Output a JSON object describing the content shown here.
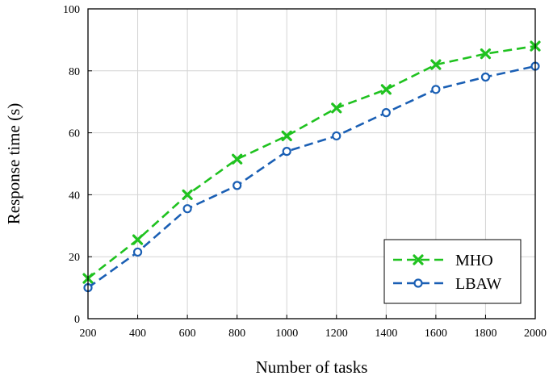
{
  "chart_data": {
    "type": "line",
    "title": "",
    "xlabel": "Number of tasks",
    "ylabel": "Response time (s)",
    "x": [
      200,
      400,
      600,
      800,
      1000,
      1200,
      1400,
      1600,
      1800,
      2000
    ],
    "xlim": [
      200,
      2000
    ],
    "ylim": [
      0,
      100
    ],
    "x_ticks": [
      200,
      400,
      600,
      800,
      1000,
      1200,
      1400,
      1600,
      1800,
      2000
    ],
    "y_ticks": [
      0,
      20,
      40,
      60,
      80,
      100
    ],
    "grid": true,
    "legend_position": "bottom-right",
    "series": [
      {
        "name": "MHO",
        "values": [
          13,
          25.5,
          40,
          51.5,
          59,
          68,
          74,
          82,
          85.5,
          88
        ],
        "color": "#1fc21f",
        "marker": "x",
        "line_style": "dashed"
      },
      {
        "name": "LBAW",
        "values": [
          10,
          21.5,
          35.5,
          43,
          54,
          59,
          66.5,
          74,
          78,
          81.5
        ],
        "color": "#1a5fb4",
        "marker": "circle",
        "line_style": "dashed"
      }
    ]
  }
}
